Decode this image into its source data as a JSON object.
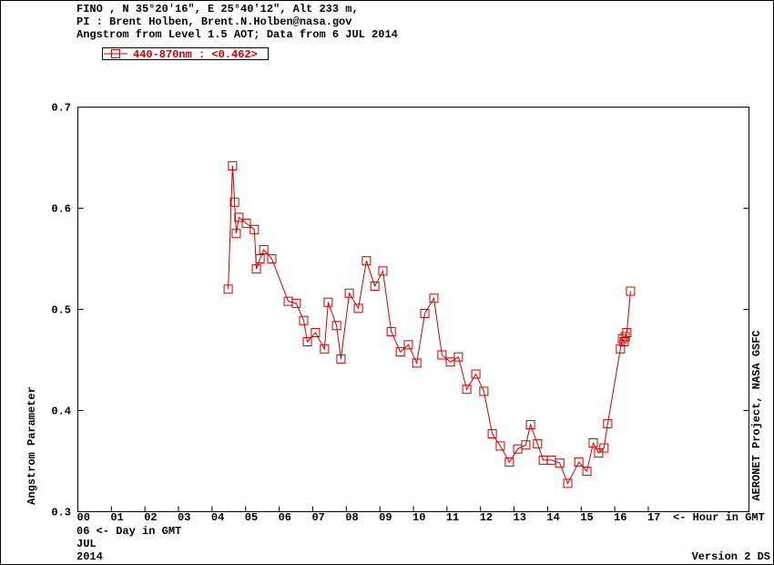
{
  "chart_data": {
    "type": "line",
    "title_lines": [
      "FINO , N 35°20'16\", E 25°40'12\", Alt 233 m,",
      "PI : Brent Holben, Brent.N.Holben@nasa.gov",
      "Angstrom from Level 1.5 AOT; Data from 6 JUL 2014"
    ],
    "y_label": "Angstrom Parameter",
    "right_label": "AERONET Project, NASA GSFC",
    "x_label": "<- Hour in GMT",
    "day_label": "06  <- Day in GMT",
    "month_label": "JUL",
    "year_label": "2014",
    "footer": "Version 2 DS",
    "xlim": [
      0,
      20
    ],
    "xticks": [
      {
        "value": 0,
        "label": "00"
      },
      {
        "value": 1,
        "label": "01"
      },
      {
        "value": 2,
        "label": "02"
      },
      {
        "value": 3,
        "label": "03"
      },
      {
        "value": 4,
        "label": "04"
      },
      {
        "value": 5,
        "label": "05"
      },
      {
        "value": 6,
        "label": "06"
      },
      {
        "value": 7,
        "label": "07"
      },
      {
        "value": 8,
        "label": "08"
      },
      {
        "value": 9,
        "label": "09"
      },
      {
        "value": 10,
        "label": "10"
      },
      {
        "value": 11,
        "label": "11"
      },
      {
        "value": 12,
        "label": "12"
      },
      {
        "value": 13,
        "label": "13"
      },
      {
        "value": 14,
        "label": "14"
      },
      {
        "value": 15,
        "label": "15"
      },
      {
        "value": 16,
        "label": "16"
      },
      {
        "value": 17,
        "label": "17"
      }
    ],
    "ylim": [
      0.3,
      0.7
    ],
    "yticks": [
      0.3,
      0.4,
      0.5,
      0.6,
      0.7
    ],
    "series": [
      {
        "name": "440-870nm  : <0.462>",
        "color": "#cc0000",
        "x": [
          4.48,
          4.61,
          4.67,
          4.72,
          4.8,
          5.02,
          5.26,
          5.32,
          5.43,
          5.54,
          5.78,
          6.27,
          6.51,
          6.73,
          6.84,
          7.08,
          7.35,
          7.46,
          7.71,
          7.84,
          8.09,
          8.36,
          8.6,
          8.85,
          9.09,
          9.34,
          9.61,
          9.85,
          10.1,
          10.34,
          10.61,
          10.85,
          11.1,
          11.34,
          11.59,
          11.86,
          12.1,
          12.35,
          12.59,
          12.86,
          13.11,
          13.35,
          13.49,
          13.7,
          13.87,
          14.11,
          14.36,
          14.6,
          14.93,
          15.17,
          15.36,
          15.52,
          15.68,
          15.79,
          16.17,
          16.23,
          16.28,
          16.31,
          16.36,
          16.47
        ],
        "values": [
          0.52,
          0.642,
          0.606,
          0.575,
          0.591,
          0.585,
          0.579,
          0.54,
          0.55,
          0.559,
          0.55,
          0.508,
          0.506,
          0.489,
          0.468,
          0.477,
          0.461,
          0.507,
          0.484,
          0.451,
          0.516,
          0.501,
          0.548,
          0.523,
          0.538,
          0.478,
          0.458,
          0.465,
          0.447,
          0.496,
          0.511,
          0.455,
          0.448,
          0.453,
          0.421,
          0.436,
          0.419,
          0.377,
          0.365,
          0.349,
          0.362,
          0.366,
          0.386,
          0.367,
          0.351,
          0.351,
          0.348,
          0.328,
          0.349,
          0.34,
          0.368,
          0.358,
          0.363,
          0.387,
          0.461,
          0.471,
          0.468,
          0.473,
          0.477,
          0.518
        ]
      }
    ]
  }
}
